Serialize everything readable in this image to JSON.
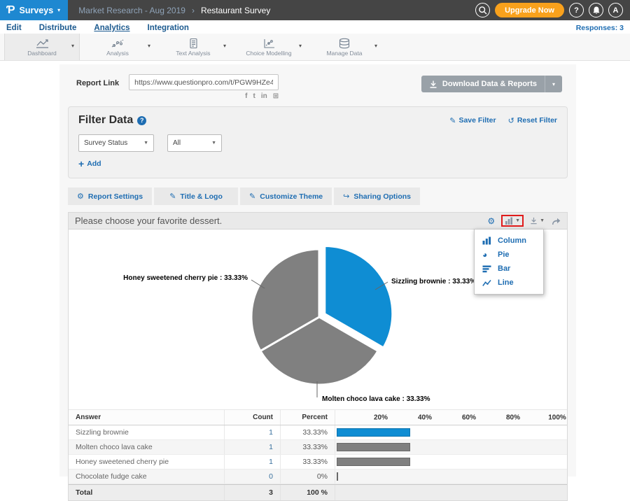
{
  "header": {
    "logo_glyph": "Ƥ",
    "product_label": "Surveys",
    "breadcrumb_parent": "Market Research - Aug 2019",
    "breadcrumb_separator": "›",
    "breadcrumb_current": "Restaurant Survey",
    "upgrade_label": "Upgrade Now",
    "help_label": "?",
    "avatar_label": "A"
  },
  "nav": {
    "items": [
      "Edit",
      "Distribute",
      "Analytics",
      "Integration"
    ],
    "active": "Analytics",
    "responses_label": "Responses: 3"
  },
  "toolbar": {
    "items": [
      {
        "label": "Dashboard",
        "icon": "line-chart-icon",
        "active": true
      },
      {
        "label": "Analysis",
        "icon": "scatter-chart-icon",
        "active": false
      },
      {
        "label": "Text Analysis",
        "icon": "document-icon",
        "active": false
      },
      {
        "label": "Choice Modelling",
        "icon": "model-chart-icon",
        "active": false
      },
      {
        "label": "Manage Data",
        "icon": "database-icon",
        "active": false
      }
    ]
  },
  "report": {
    "label": "Report Link",
    "url": "https://www.questionpro.com/t/PGW9HZe4",
    "download_label": "Download Data & Reports",
    "social_icons": [
      "facebook",
      "twitter",
      "linkedin",
      "embed"
    ]
  },
  "filter": {
    "title": "Filter Data",
    "save_label": "Save Filter",
    "reset_label": "Reset Filter",
    "field_selects": [
      "Survey Status",
      "All"
    ],
    "add_label": "Add"
  },
  "tabs": [
    "Report Settings",
    "Title & Logo",
    "Customize Theme",
    "Sharing Options"
  ],
  "question": {
    "title": "Please choose your favorite dessert."
  },
  "chart_menu": [
    "Column",
    "Pie",
    "Bar",
    "Line"
  ],
  "chart_data": {
    "type": "pie",
    "title": "Please choose your favorite dessert.",
    "labels": [
      "Sizzling brownie",
      "Molten choco lava cake",
      "Honey sweetened cherry pie",
      "Chocolate fudge cake"
    ],
    "values": [
      33.33,
      33.33,
      33.33,
      0
    ],
    "counts": [
      1,
      1,
      1,
      0
    ],
    "total_count": 3,
    "colors": [
      "#0f8dd3",
      "#808080",
      "#808080",
      "#808080"
    ],
    "exploded_slice": "Sizzling brownie",
    "label_format": "name : percent%",
    "legend_position": "none"
  },
  "table": {
    "headers": [
      "Answer",
      "Count",
      "Percent"
    ],
    "ticks": [
      "20%",
      "40%",
      "60%",
      "80%",
      "100%"
    ],
    "rows": [
      {
        "answer": "Sizzling brownie",
        "count": "1",
        "percent": "33.33%",
        "bar_pct": 33.33,
        "bar_color": "#0f8dd3"
      },
      {
        "answer": "Molten choco lava cake",
        "count": "1",
        "percent": "33.33%",
        "bar_pct": 33.33,
        "bar_color": "#808080"
      },
      {
        "answer": "Honey sweetened cherry pie",
        "count": "1",
        "percent": "33.33%",
        "bar_pct": 33.33,
        "bar_color": "#808080"
      },
      {
        "answer": "Chocolate fudge cake",
        "count": "0",
        "percent": "0%",
        "bar_pct": 0.6,
        "bar_color": "#808080"
      }
    ],
    "total": {
      "label": "Total",
      "count": "3",
      "percent": "100 %"
    }
  },
  "colors": {
    "accent_blue": "#0f8dd3",
    "link_blue": "#1e6db2",
    "orange": "#f9a11c",
    "header_dark": "#454545",
    "logo_blue": "#1e88d1",
    "slice_gray": "#808080",
    "annotation_red": "#e01b1b"
  }
}
